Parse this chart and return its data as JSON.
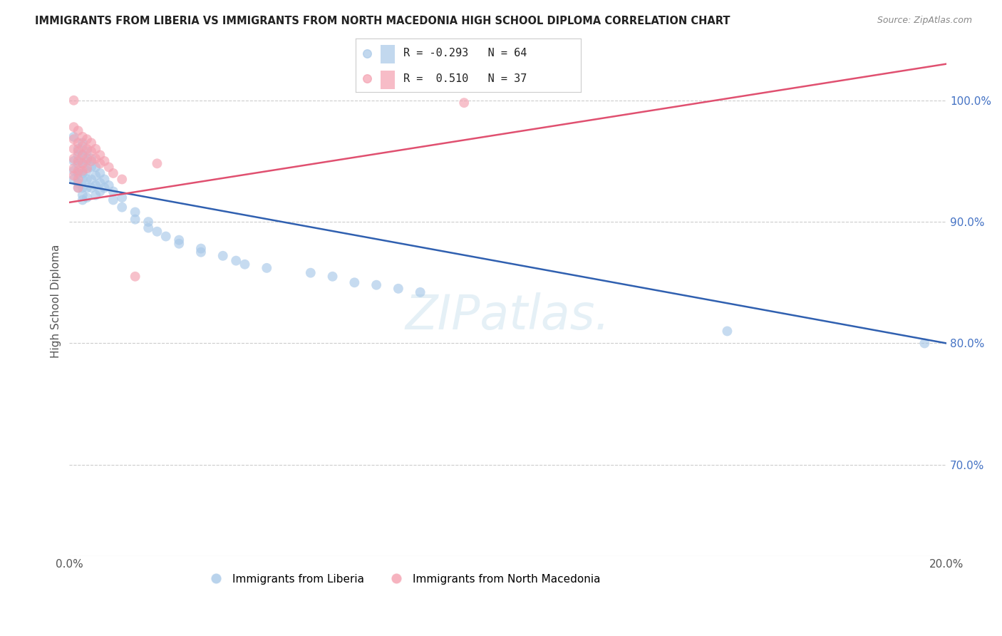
{
  "title": "IMMIGRANTS FROM LIBERIA VS IMMIGRANTS FROM NORTH MACEDONIA HIGH SCHOOL DIPLOMA CORRELATION CHART",
  "source": "Source: ZipAtlas.com",
  "ylabel": "High School Diploma",
  "ytick_vals": [
    1.0,
    0.9,
    0.8,
    0.7
  ],
  "xlim": [
    0.0,
    0.2
  ],
  "ylim": [
    0.625,
    1.045
  ],
  "watermark": "ZIPatlas.",
  "legend_r_liberia": "-0.293",
  "legend_n_liberia": "64",
  "legend_r_macedonia": "0.510",
  "legend_n_macedonia": "37",
  "liberia_color": "#a8c8e8",
  "macedonia_color": "#f4a0b0",
  "liberia_line_color": "#3060b0",
  "macedonia_line_color": "#e05070",
  "liberia_line": [
    0.0,
    0.932,
    0.2,
    0.8
  ],
  "macedonia_line": [
    0.0,
    0.916,
    0.2,
    1.03
  ],
  "liberia_points": [
    [
      0.001,
      0.97
    ],
    [
      0.001,
      0.95
    ],
    [
      0.001,
      0.942
    ],
    [
      0.001,
      0.935
    ],
    [
      0.002,
      0.96
    ],
    [
      0.002,
      0.955
    ],
    [
      0.002,
      0.948
    ],
    [
      0.002,
      0.94
    ],
    [
      0.002,
      0.932
    ],
    [
      0.002,
      0.928
    ],
    [
      0.003,
      0.965
    ],
    [
      0.003,
      0.955
    ],
    [
      0.003,
      0.948
    ],
    [
      0.003,
      0.94
    ],
    [
      0.003,
      0.935
    ],
    [
      0.003,
      0.928
    ],
    [
      0.003,
      0.922
    ],
    [
      0.003,
      0.918
    ],
    [
      0.004,
      0.958
    ],
    [
      0.004,
      0.95
    ],
    [
      0.004,
      0.942
    ],
    [
      0.004,
      0.935
    ],
    [
      0.004,
      0.928
    ],
    [
      0.004,
      0.92
    ],
    [
      0.005,
      0.952
    ],
    [
      0.005,
      0.945
    ],
    [
      0.005,
      0.935
    ],
    [
      0.005,
      0.928
    ],
    [
      0.006,
      0.945
    ],
    [
      0.006,
      0.938
    ],
    [
      0.006,
      0.93
    ],
    [
      0.006,
      0.922
    ],
    [
      0.007,
      0.94
    ],
    [
      0.007,
      0.932
    ],
    [
      0.007,
      0.925
    ],
    [
      0.008,
      0.935
    ],
    [
      0.008,
      0.928
    ],
    [
      0.009,
      0.93
    ],
    [
      0.01,
      0.925
    ],
    [
      0.01,
      0.918
    ],
    [
      0.012,
      0.92
    ],
    [
      0.012,
      0.912
    ],
    [
      0.015,
      0.908
    ],
    [
      0.015,
      0.902
    ],
    [
      0.018,
      0.9
    ],
    [
      0.018,
      0.895
    ],
    [
      0.02,
      0.892
    ],
    [
      0.022,
      0.888
    ],
    [
      0.025,
      0.885
    ],
    [
      0.025,
      0.882
    ],
    [
      0.03,
      0.878
    ],
    [
      0.03,
      0.875
    ],
    [
      0.035,
      0.872
    ],
    [
      0.038,
      0.868
    ],
    [
      0.04,
      0.865
    ],
    [
      0.045,
      0.862
    ],
    [
      0.055,
      0.858
    ],
    [
      0.06,
      0.855
    ],
    [
      0.065,
      0.85
    ],
    [
      0.07,
      0.848
    ],
    [
      0.075,
      0.845
    ],
    [
      0.08,
      0.842
    ],
    [
      0.15,
      0.81
    ],
    [
      0.195,
      0.8
    ]
  ],
  "macedonia_points": [
    [
      0.001,
      1.0
    ],
    [
      0.001,
      0.978
    ],
    [
      0.001,
      0.968
    ],
    [
      0.001,
      0.96
    ],
    [
      0.001,
      0.952
    ],
    [
      0.001,
      0.944
    ],
    [
      0.001,
      0.938
    ],
    [
      0.002,
      0.975
    ],
    [
      0.002,
      0.965
    ],
    [
      0.002,
      0.958
    ],
    [
      0.002,
      0.95
    ],
    [
      0.002,
      0.942
    ],
    [
      0.002,
      0.935
    ],
    [
      0.002,
      0.928
    ],
    [
      0.003,
      0.97
    ],
    [
      0.003,
      0.962
    ],
    [
      0.003,
      0.955
    ],
    [
      0.003,
      0.948
    ],
    [
      0.003,
      0.942
    ],
    [
      0.004,
      0.968
    ],
    [
      0.004,
      0.96
    ],
    [
      0.004,
      0.952
    ],
    [
      0.004,
      0.944
    ],
    [
      0.005,
      0.965
    ],
    [
      0.005,
      0.958
    ],
    [
      0.005,
      0.95
    ],
    [
      0.006,
      0.96
    ],
    [
      0.006,
      0.952
    ],
    [
      0.007,
      0.955
    ],
    [
      0.007,
      0.948
    ],
    [
      0.008,
      0.95
    ],
    [
      0.009,
      0.945
    ],
    [
      0.01,
      0.94
    ],
    [
      0.012,
      0.935
    ],
    [
      0.015,
      0.855
    ],
    [
      0.02,
      0.948
    ],
    [
      0.09,
      0.998
    ]
  ]
}
